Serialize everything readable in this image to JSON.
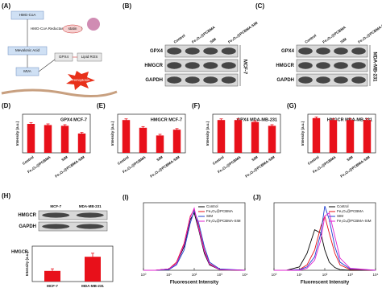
{
  "figure": {
    "a": {
      "label": "(A)",
      "nodes": [
        "HMG-CoA",
        "HMG-CoA Reductase (HMGCR)",
        "statin",
        "Mevalonic Acid",
        "MVA",
        "GPX4",
        "Lipid ROS",
        "Ferroptosis"
      ]
    },
    "blots": [
      {
        "label": "(B)",
        "lanes": [
          "Control",
          "Fe₃O₄@PCBMA",
          "SIM",
          "Fe₃O₄@PCBMA-SIM"
        ],
        "rows": [
          "GPX4",
          "HMGCR",
          "GAPDH"
        ],
        "cell": "MCF-7"
      },
      {
        "label": "(C)",
        "lanes": [
          "Control",
          "Fe₃O₄@PCBMA",
          "SIM",
          "Fe₃O₄@PCBMA-SIM"
        ],
        "rows": [
          "GPX4",
          "HMGCR",
          "GAPDH"
        ],
        "cell": "MDA-MB-231"
      },
      {
        "label": "(H)",
        "lanes": [
          "MCF-7",
          "MDA-MB-231"
        ],
        "rows": [
          "HMGCR",
          "GAPDH"
        ]
      }
    ]
  },
  "chart_data": [
    {
      "type": "bar",
      "panel": "(D)",
      "title": "GPX4 MCF-7",
      "ylabel": "Intensity (a.u.)",
      "categories": [
        "Control",
        "Fe₃O₄@PCBMA",
        "SIM",
        "Fe₃O₄@PCBMA-SIM"
      ],
      "values": [
        0.75,
        0.72,
        0.7,
        0.5
      ],
      "errors": [
        0.03,
        0.03,
        0.03,
        0.03
      ],
      "color": "#e8101a",
      "ylim": [
        0,
        1
      ]
    },
    {
      "type": "bar",
      "panel": "(E)",
      "title": "HMGCR MCF-7",
      "ylabel": "Intensity (a.u.)",
      "categories": [
        "Control",
        "Fe₃O₄@PCBMA",
        "SIM",
        "Fe₃O₄@PCBMA-SIM"
      ],
      "values": [
        0.85,
        0.65,
        0.45,
        0.6
      ],
      "errors": [
        0.03,
        0.03,
        0.03,
        0.03
      ],
      "color": "#e8101a",
      "ylim": [
        0,
        1
      ]
    },
    {
      "type": "bar",
      "panel": "(F)",
      "title": "GPX4 MDA-MB-231",
      "ylabel": "Intensity (a.u.)",
      "categories": [
        "Control",
        "Fe₃O₄@PCBMA",
        "SIM",
        "Fe₃O₄@PCBMA-SIM"
      ],
      "values": [
        0.85,
        0.85,
        0.8,
        0.7
      ],
      "errors": [
        0.03,
        0.03,
        0.03,
        0.03
      ],
      "color": "#e8101a",
      "ylim": [
        0,
        1
      ]
    },
    {
      "type": "bar",
      "panel": "(G)",
      "title": "HMGCR MDA-MB-231",
      "ylabel": "Intensity (a.u.)",
      "categories": [
        "Control",
        "Fe₃O₄@PCBMA",
        "SIM",
        "Fe₃O₄@PCBMA-SIM"
      ],
      "values": [
        0.9,
        0.85,
        0.85,
        0.85
      ],
      "errors": [
        0.03,
        0.03,
        0.03,
        0.03
      ],
      "color": "#e8101a",
      "ylim": [
        0,
        1
      ]
    },
    {
      "type": "bar",
      "title": "HMGCR",
      "ylabel": "Intensity (a.u.)",
      "categories": [
        "MCF-7",
        "MDA-MB-231"
      ],
      "values": [
        0.3,
        0.7
      ],
      "errors": [
        0.06,
        0.1
      ],
      "color": "#e8101a",
      "ylim": [
        0,
        1
      ]
    },
    {
      "type": "line",
      "panel": "(I)",
      "xlabel": "Fluorescent Intensity",
      "log_x": true,
      "x": [
        1,
        3,
        10,
        20,
        40,
        70,
        100,
        150,
        250,
        400,
        1000,
        10000
      ],
      "xlim": [
        1,
        10000
      ],
      "xticks": [
        {
          "value": 1,
          "label": "10⁰"
        },
        {
          "value": 10,
          "label": "10¹"
        },
        {
          "value": 100,
          "label": "10²"
        },
        {
          "value": 1000,
          "label": "10³"
        },
        {
          "value": 10000,
          "label": "10⁴"
        }
      ],
      "ylim": [
        0,
        1
      ],
      "series": [
        {
          "name": "Control",
          "color": "#000000",
          "values": [
            0,
            0,
            0.02,
            0.1,
            0.35,
            0.75,
            0.85,
            0.6,
            0.25,
            0.08,
            0.01,
            0
          ]
        },
        {
          "name": "Fe₃O₄@PCBMA",
          "color": "#e8101a",
          "values": [
            0,
            0,
            0.02,
            0.12,
            0.4,
            0.8,
            0.9,
            0.65,
            0.3,
            0.1,
            0.01,
            0
          ]
        },
        {
          "name": "SIM",
          "color": "#1f3fd0",
          "values": [
            0,
            0,
            0.01,
            0.08,
            0.3,
            0.7,
            0.88,
            0.7,
            0.35,
            0.12,
            0.02,
            0
          ]
        },
        {
          "name": "Fe₃O₄@PCBMA-SIM",
          "color": "#e020d0",
          "values": [
            0,
            0,
            0.02,
            0.1,
            0.38,
            0.78,
            0.92,
            0.62,
            0.28,
            0.09,
            0.01,
            0
          ]
        }
      ]
    },
    {
      "type": "line",
      "panel": "(J)",
      "xlabel": "Fluorescent Intensity",
      "log_x": true,
      "x": [
        1,
        3,
        10,
        20,
        40,
        70,
        100,
        150,
        250,
        400,
        1000,
        10000
      ],
      "xlim": [
        1,
        10000
      ],
      "xticks": [
        {
          "value": 1,
          "label": "10⁰"
        },
        {
          "value": 10,
          "label": "10¹"
        },
        {
          "value": 100,
          "label": "10²"
        },
        {
          "value": 1000,
          "label": "10³"
        },
        {
          "value": 10000,
          "label": "10⁴"
        }
      ],
      "ylim": [
        0,
        1
      ],
      "series": [
        {
          "name": "Control",
          "color": "#000000",
          "values": [
            0,
            0,
            0.05,
            0.25,
            0.6,
            0.55,
            0.3,
            0.12,
            0.04,
            0.01,
            0,
            0
          ]
        },
        {
          "name": "Fe₃O₄@PCBMA",
          "color": "#e8101a",
          "values": [
            0,
            0,
            0.01,
            0.08,
            0.3,
            0.65,
            0.8,
            0.55,
            0.25,
            0.08,
            0.01,
            0
          ]
        },
        {
          "name": "SIM",
          "color": "#1f3fd0",
          "values": [
            0,
            0,
            0.01,
            0.05,
            0.2,
            0.55,
            0.95,
            0.75,
            0.35,
            0.12,
            0.02,
            0
          ]
        },
        {
          "name": "Fe₃O₄@PCBMA-SIM",
          "color": "#e020d0",
          "values": [
            0,
            0,
            0,
            0.03,
            0.15,
            0.45,
            0.8,
            0.85,
            0.5,
            0.18,
            0.03,
            0
          ]
        }
      ]
    }
  ]
}
